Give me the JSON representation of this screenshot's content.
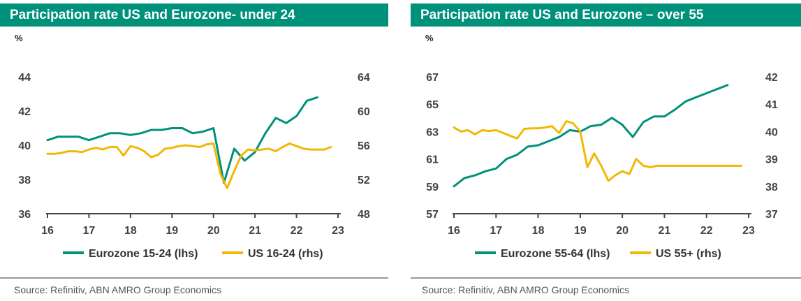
{
  "colors": {
    "teal": "#00917a",
    "gold": "#f2b807",
    "axis": "#3d4a4e"
  },
  "source_text": "Source: Refinitiv, ABN AMRO Group Economics",
  "chart_data": [
    {
      "type": "line",
      "title": "Participation rate US and Eurozone- under 24",
      "unit_label": "%",
      "x_ticks": [
        "16",
        "17",
        "18",
        "19",
        "20",
        "21",
        "22",
        "23"
      ],
      "xlim": [
        2016,
        2023
      ],
      "ylim_left": [
        36,
        44
      ],
      "yticks_left": [
        "36",
        "38",
        "40",
        "42",
        "44"
      ],
      "ylim_right": [
        48,
        64
      ],
      "yticks_right": [
        "48",
        "52",
        "56",
        "60",
        "64"
      ],
      "grid": false,
      "legend": "bottom",
      "series": [
        {
          "name": "Eurozone 15-24 (lhs)",
          "axis": "left",
          "color": "#00917a",
          "x": [
            2016.0,
            2016.25,
            2016.5,
            2016.75,
            2017.0,
            2017.25,
            2017.5,
            2017.75,
            2018.0,
            2018.25,
            2018.5,
            2018.75,
            2019.0,
            2019.25,
            2019.5,
            2019.75,
            2020.0,
            2020.25,
            2020.5,
            2020.75,
            2021.0,
            2021.25,
            2021.5,
            2021.75,
            2022.0,
            2022.25,
            2022.5
          ],
          "y": [
            40.3,
            40.5,
            40.5,
            40.5,
            40.3,
            40.5,
            40.7,
            40.7,
            40.6,
            40.7,
            40.9,
            40.9,
            41.0,
            41.0,
            40.7,
            40.8,
            41.0,
            37.8,
            39.8,
            39.1,
            39.6,
            40.7,
            41.6,
            41.3,
            41.7,
            42.6,
            42.8
          ]
        },
        {
          "name": "US 16-24 (rhs)",
          "axis": "right",
          "color": "#f2b807",
          "x": [
            2016.0,
            2016.17,
            2016.33,
            2016.5,
            2016.67,
            2016.83,
            2017.0,
            2017.17,
            2017.33,
            2017.5,
            2017.67,
            2017.83,
            2018.0,
            2018.17,
            2018.33,
            2018.5,
            2018.67,
            2018.83,
            2019.0,
            2019.17,
            2019.33,
            2019.5,
            2019.67,
            2019.83,
            2020.0,
            2020.17,
            2020.33,
            2020.5,
            2020.67,
            2020.83,
            2021.0,
            2021.17,
            2021.33,
            2021.5,
            2021.67,
            2021.83,
            2022.0,
            2022.17,
            2022.33,
            2022.5,
            2022.67,
            2022.83
          ],
          "y": [
            55.0,
            55.0,
            55.1,
            55.3,
            55.3,
            55.2,
            55.5,
            55.7,
            55.5,
            55.8,
            55.8,
            54.8,
            55.9,
            55.7,
            55.3,
            54.6,
            54.9,
            55.6,
            55.7,
            55.9,
            56.0,
            55.9,
            55.8,
            56.1,
            56.2,
            52.6,
            51.0,
            53.0,
            54.8,
            55.5,
            55.4,
            55.5,
            55.6,
            55.3,
            55.8,
            56.2,
            55.9,
            55.6,
            55.5,
            55.5,
            55.5,
            55.8
          ]
        }
      ]
    },
    {
      "type": "line",
      "title": "Participation rate US and Eurozone – over 55",
      "unit_label": "%",
      "x_ticks": [
        "16",
        "17",
        "18",
        "19",
        "20",
        "21",
        "22",
        "23"
      ],
      "xlim": [
        2016,
        2023
      ],
      "ylim_left": [
        57,
        67
      ],
      "yticks_left": [
        "57",
        "59",
        "61",
        "63",
        "65",
        "67"
      ],
      "ylim_right": [
        37,
        42
      ],
      "yticks_right": [
        "37",
        "38",
        "39",
        "40",
        "41",
        "42"
      ],
      "grid": false,
      "legend": "bottom",
      "series": [
        {
          "name": "Eurozone 55-64 (lhs)",
          "axis": "left",
          "color": "#00917a",
          "x": [
            2016.0,
            2016.25,
            2016.5,
            2016.75,
            2017.0,
            2017.25,
            2017.5,
            2017.75,
            2018.0,
            2018.25,
            2018.5,
            2018.75,
            2019.0,
            2019.25,
            2019.5,
            2019.75,
            2020.0,
            2020.25,
            2020.5,
            2020.75,
            2021.0,
            2021.25,
            2021.5,
            2021.75,
            2022.0,
            2022.25,
            2022.5
          ],
          "y": [
            59.0,
            59.6,
            59.8,
            60.1,
            60.3,
            61.0,
            61.3,
            61.9,
            62.0,
            62.3,
            62.6,
            63.1,
            63.0,
            63.4,
            63.5,
            64.0,
            63.5,
            62.6,
            63.7,
            64.1,
            64.1,
            64.6,
            65.2,
            65.5,
            65.8,
            66.1,
            66.4
          ]
        },
        {
          "name": "US 55+ (rhs)",
          "axis": "right",
          "color": "#f2b807",
          "x": [
            2016.0,
            2016.17,
            2016.33,
            2016.5,
            2016.67,
            2016.83,
            2017.0,
            2017.17,
            2017.33,
            2017.5,
            2017.67,
            2017.83,
            2018.0,
            2018.17,
            2018.33,
            2018.5,
            2018.67,
            2018.83,
            2019.0,
            2019.17,
            2019.33,
            2019.5,
            2019.67,
            2019.83,
            2020.0,
            2020.17,
            2020.33,
            2020.5,
            2020.67,
            2020.83,
            2021.0,
            2021.17,
            2021.33,
            2021.5,
            2021.67,
            2021.83,
            2022.0,
            2022.17,
            2022.33,
            2022.5,
            2022.67,
            2022.83
          ],
          "y": [
            40.15,
            40.0,
            40.05,
            39.9,
            40.05,
            40.02,
            40.05,
            39.95,
            39.85,
            39.75,
            40.1,
            40.12,
            40.12,
            40.15,
            40.2,
            39.95,
            40.38,
            40.3,
            40.0,
            38.7,
            39.2,
            38.75,
            38.2,
            38.4,
            38.55,
            38.45,
            39.0,
            38.75,
            38.7,
            38.75,
            38.75,
            38.75,
            38.75,
            38.75,
            38.75,
            38.75,
            38.75,
            38.75,
            38.75,
            38.75,
            38.75,
            38.75
          ]
        }
      ]
    }
  ]
}
